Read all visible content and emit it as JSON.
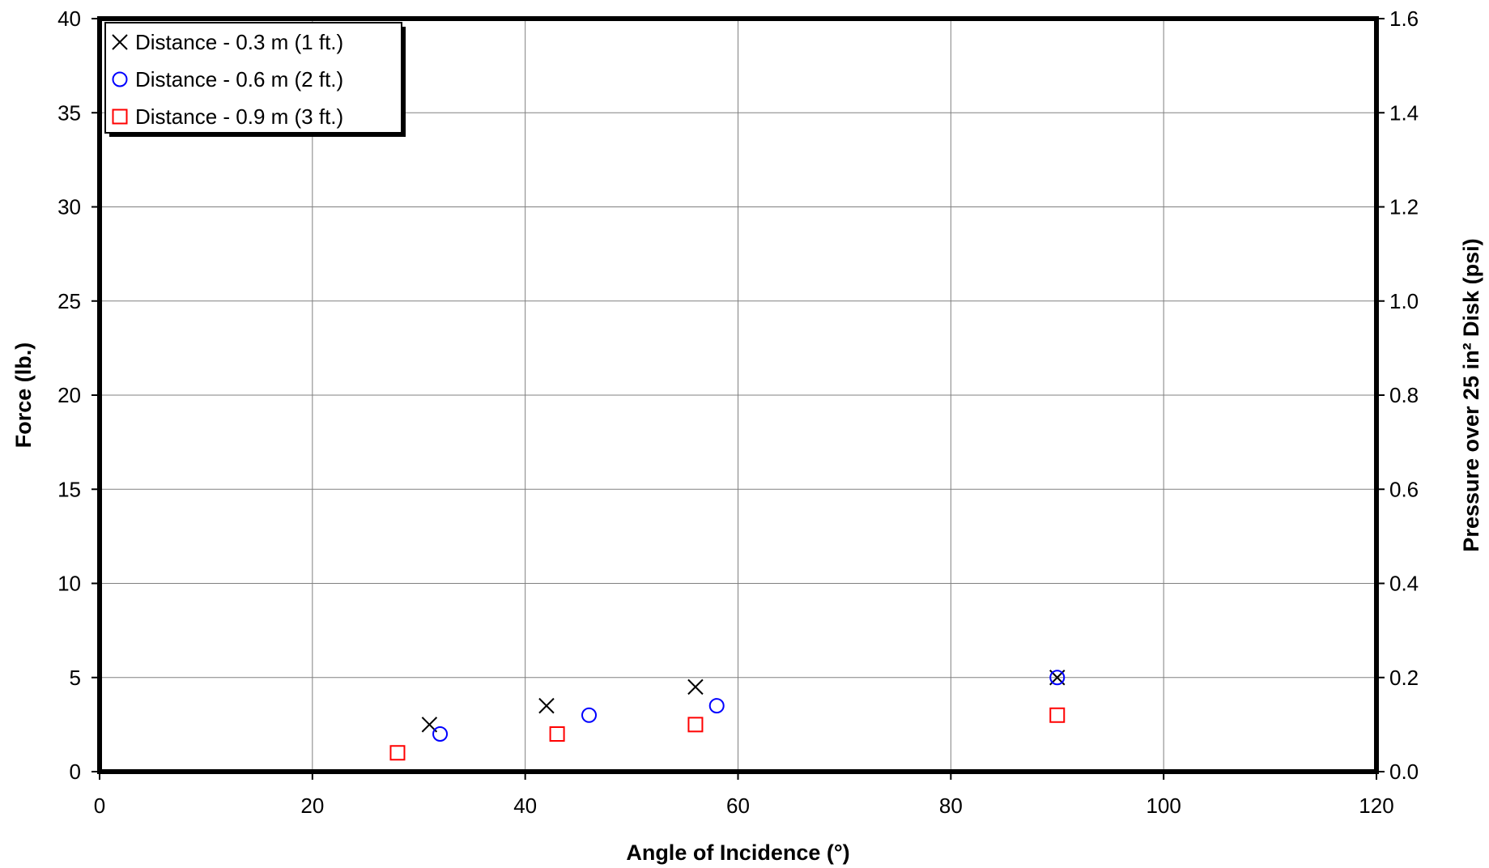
{
  "chart_data": {
    "type": "scatter",
    "title": "",
    "xlabel": "Angle of Incidence (°)",
    "ylabel": "Force (lb.)",
    "y2label": "Pressure over 25 in² Disk (psi)",
    "xlim": [
      0,
      120
    ],
    "ylim": [
      0,
      40
    ],
    "y2lim": [
      0.0,
      1.6
    ],
    "xticks": [
      "0",
      "20",
      "40",
      "60",
      "80",
      "100",
      "120"
    ],
    "yticks": [
      "0",
      "5",
      "10",
      "15",
      "20",
      "25",
      "30",
      "35",
      "40"
    ],
    "y2ticks": [
      "0.0",
      "0.2",
      "0.4",
      "0.6",
      "0.8",
      "1.0",
      "1.2",
      "1.4",
      "1.6"
    ],
    "grid": true,
    "legend_position": "top-left",
    "series": [
      {
        "name": "Distance - 0.3 m (1 ft.)",
        "marker": "x",
        "color": "#000000",
        "points": [
          [
            31,
            2.5
          ],
          [
            42,
            3.5
          ],
          [
            56,
            4.5
          ],
          [
            90,
            5.0
          ]
        ]
      },
      {
        "name": "Distance - 0.6 m (2 ft.)",
        "marker": "circle",
        "color": "#0000ff",
        "points": [
          [
            32,
            2.0
          ],
          [
            46,
            3.0
          ],
          [
            58,
            3.5
          ],
          [
            90,
            5.0
          ]
        ]
      },
      {
        "name": "Distance - 0.9 m (3 ft.)",
        "marker": "square",
        "color": "#ff0000",
        "points": [
          [
            28,
            1.0
          ],
          [
            43,
            2.0
          ],
          [
            56,
            2.5
          ],
          [
            90,
            3.0
          ]
        ]
      }
    ]
  }
}
